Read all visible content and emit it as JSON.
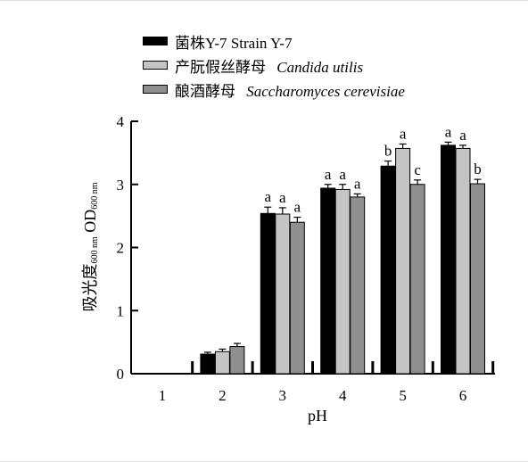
{
  "chart_data": {
    "type": "bar",
    "categories": [
      "1",
      "2",
      "3",
      "4",
      "5",
      "6"
    ],
    "xlabel": "pH",
    "ylabel": {
      "main_a": "吸光度",
      "sub_a": "600 nm",
      "main_b": " OD",
      "sub_b": "600 nm"
    },
    "ylim": [
      0,
      4
    ],
    "yticks": [
      "0",
      "1",
      "2",
      "3",
      "4"
    ],
    "grid": false,
    "legend_position": "top",
    "series": [
      {
        "name_cn": "菌株Y-7",
        "name_en": "Strain Y-7",
        "color": "#000000",
        "values": [
          0,
          0.31,
          2.54,
          2.94,
          3.29,
          3.62
        ],
        "errors": [
          0,
          0.03,
          0.1,
          0.06,
          0.08,
          0.05
        ],
        "labels": [
          "",
          "",
          "a",
          "a",
          "b",
          "a"
        ]
      },
      {
        "name_cn": "产朊假丝酵母",
        "name_en": "Candida utilis",
        "color": "#c4c4c4",
        "values": [
          0,
          0.35,
          2.53,
          2.92,
          3.57,
          3.57
        ],
        "errors": [
          0,
          0.04,
          0.1,
          0.08,
          0.07,
          0.05
        ],
        "labels": [
          "",
          "",
          "a",
          "a",
          "a",
          "a"
        ]
      },
      {
        "name_cn": "酿酒酵母",
        "name_en": "Saccharomyces cerevisiae",
        "color": "#8f8f8f",
        "values": [
          0,
          0.43,
          2.4,
          2.8,
          3.0,
          3.01
        ],
        "errors": [
          0,
          0.05,
          0.08,
          0.05,
          0.07,
          0.07
        ],
        "labels": [
          "",
          "",
          "a",
          "a",
          "c",
          "b"
        ]
      }
    ]
  }
}
